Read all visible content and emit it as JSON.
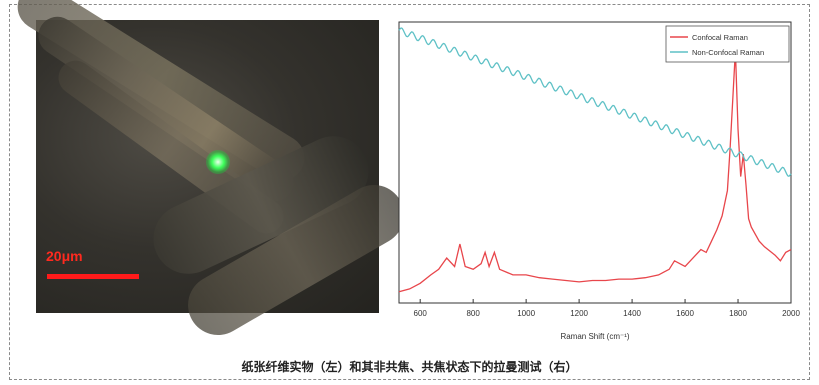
{
  "figure": {
    "caption": "纸张纤维实物（左）和其非共焦、共焦状态下的拉曼测试（右）",
    "micrograph": {
      "scale_label": "20μm",
      "scale_color": "#ff1a1a"
    }
  },
  "chart_data": {
    "type": "line",
    "xlabel": "Raman Shift (cm⁻¹)",
    "ylabel": "",
    "xlim": [
      520,
      2000
    ],
    "x_ticks": [
      "600",
      "800",
      "1000",
      "1200",
      "1400",
      "1600",
      "1800",
      "2000"
    ],
    "y_ticks_shown": false,
    "grid": false,
    "legend_position": "top-right",
    "series": [
      {
        "name": "Confocal Raman",
        "color": "#e8464b",
        "x": [
          520,
          560,
          600,
          640,
          670,
          700,
          730,
          750,
          770,
          800,
          830,
          845,
          860,
          880,
          900,
          950,
          1000,
          1050,
          1100,
          1150,
          1200,
          1250,
          1300,
          1350,
          1400,
          1450,
          1500,
          1520,
          1540,
          1560,
          1600,
          1640,
          1660,
          1680,
          1700,
          1720,
          1740,
          1760,
          1770,
          1780,
          1790,
          1800,
          1810,
          1820,
          1830,
          1840,
          1850,
          1880,
          1900,
          1940,
          1960,
          1980,
          2000
        ],
        "y": [
          0.04,
          0.05,
          0.07,
          0.1,
          0.12,
          0.16,
          0.13,
          0.21,
          0.13,
          0.12,
          0.14,
          0.18,
          0.13,
          0.18,
          0.12,
          0.1,
          0.1,
          0.09,
          0.085,
          0.08,
          0.075,
          0.08,
          0.08,
          0.085,
          0.085,
          0.09,
          0.1,
          0.11,
          0.12,
          0.15,
          0.13,
          0.17,
          0.19,
          0.18,
          0.22,
          0.26,
          0.31,
          0.4,
          0.55,
          0.72,
          0.9,
          0.62,
          0.45,
          0.53,
          0.42,
          0.3,
          0.27,
          0.22,
          0.2,
          0.17,
          0.15,
          0.18,
          0.19
        ]
      },
      {
        "name": "Non-Confocal Raman",
        "color": "#5fc1c6",
        "x": [
          520,
          2000
        ],
        "y": [
          0.97,
          0.46
        ],
        "ripple_period": 40,
        "ripple_amplitude": 0.012
      }
    ]
  }
}
